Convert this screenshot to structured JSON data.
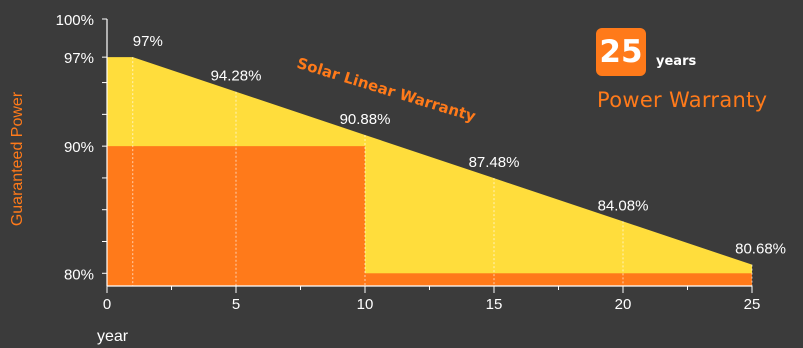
{
  "chart_data": {
    "type": "area",
    "title": "",
    "xlabel": "year",
    "ylabel": "Guaranteed Power",
    "xlim": [
      0,
      25
    ],
    "ylim": [
      79,
      100
    ],
    "x_ticks": [
      "0",
      "5",
      "10",
      "15",
      "20",
      "25"
    ],
    "y_tick_labels": [
      {
        "value": 100,
        "label": "100%"
      },
      {
        "value": 97,
        "label": "97%"
      },
      {
        "value": 90,
        "label": "90%"
      },
      {
        "value": 80,
        "label": "80%"
      }
    ],
    "linear_warranty": {
      "name": "Solar Linear Warranty",
      "x": [
        1,
        5,
        10,
        15,
        20,
        25
      ],
      "y": [
        97,
        94.28,
        90.88,
        87.48,
        84.08,
        80.68
      ],
      "labels": [
        "97%",
        "94.28%",
        "90.88%",
        "87.48%",
        "84.08%",
        "80.68%"
      ]
    },
    "step_warranty": {
      "segments": [
        {
          "x_start": 0,
          "x_end": 10,
          "y": 90
        },
        {
          "x_start": 10,
          "x_end": 25,
          "y": 80
        }
      ]
    },
    "badge": {
      "number": "25",
      "unit": "years",
      "caption": "Power Warranty"
    },
    "colors": {
      "background": "#3b3b3b",
      "linear_fill": "#ffdd3c",
      "step_fill": "#ff7a1a",
      "text": "#ffffff",
      "accent": "#ff7a1a"
    }
  }
}
